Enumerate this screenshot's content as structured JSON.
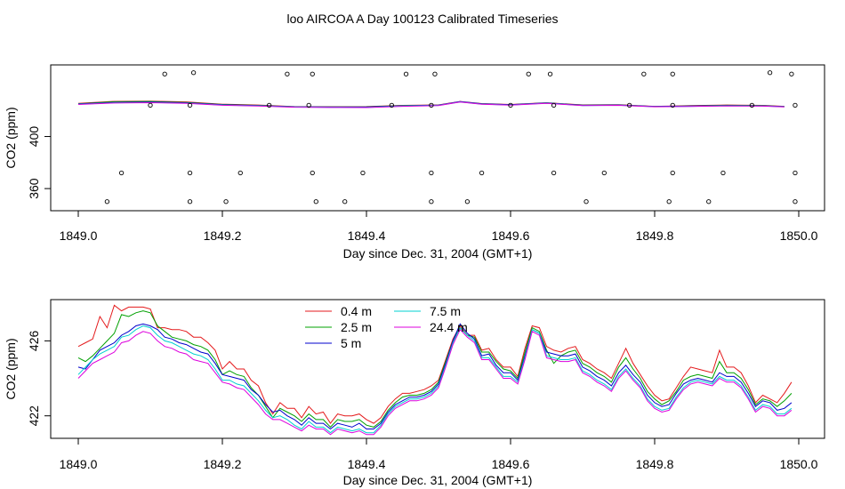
{
  "title": "loo AIRCOA A  Day 100123  Calibrated Timeseries",
  "colors": {
    "s04": "#e41a1c",
    "s25": "#00a000",
    "s5": "#0000cc",
    "s75": "#00d0d0",
    "s244": "#dd00dd"
  },
  "chart_data": [
    {
      "type": "line",
      "xlabel": "Day since Dec. 31, 2004 (GMT+1)",
      "ylabel": "CO2 (ppm)",
      "xlim": [
        1849.0,
        1850.0
      ],
      "ylim": [
        343,
        455
      ],
      "xticks": [
        "1849.0",
        "1849.2",
        "1849.4",
        "1849.6",
        "1849.8",
        "1850.0"
      ],
      "yticks": [
        "360",
        "400"
      ],
      "grid": false,
      "x": [
        1849.0,
        1849.05,
        1849.1,
        1849.15,
        1849.2,
        1849.25,
        1849.3,
        1849.35,
        1849.4,
        1849.45,
        1849.5,
        1849.53,
        1849.56,
        1849.6,
        1849.65,
        1849.7,
        1849.75,
        1849.8,
        1849.85,
        1849.9,
        1849.95,
        1849.98
      ],
      "series": [
        {
          "name": "0.4 m",
          "values": [
            425.4,
            427,
            427.2,
            426.6,
            424.8,
            424.2,
            423,
            422.9,
            423,
            423.9,
            424.3,
            426.9,
            425.3,
            424.6,
            426,
            424.3,
            424.5,
            423.2,
            423.7,
            424.2,
            423.9,
            423.2
          ]
        },
        {
          "name": "2.5 m",
          "values": [
            425.1,
            426.7,
            426.9,
            426.2,
            424.6,
            423.9,
            422.8,
            422.7,
            422.8,
            423.7,
            424.1,
            426.7,
            425.1,
            424.4,
            425.8,
            424.1,
            424.3,
            423,
            423.5,
            424,
            423.7,
            423
          ]
        },
        {
          "name": "5 m",
          "values": [
            425,
            426.2,
            426.5,
            425.9,
            424.4,
            423.8,
            422.8,
            422.6,
            422.6,
            423.6,
            424.1,
            426.8,
            425.1,
            424.4,
            425.8,
            424,
            424.2,
            423.1,
            423.4,
            423.8,
            423.6,
            423
          ]
        },
        {
          "name": "7.5 m",
          "values": [
            424.8,
            425.9,
            426.2,
            425.6,
            424.2,
            423.6,
            422.6,
            422.4,
            422.3,
            423.4,
            423.9,
            426.6,
            424.9,
            424.2,
            425.6,
            423.8,
            424,
            422.9,
            423.2,
            423.6,
            423.4,
            422.8
          ]
        },
        {
          "name": "24.4 m",
          "values": [
            424.6,
            425.7,
            426,
            425.4,
            424,
            423.4,
            422.5,
            422.3,
            422.2,
            423.2,
            423.8,
            426.5,
            424.8,
            424.1,
            425.5,
            423.7,
            423.9,
            422.8,
            423.1,
            423.5,
            423.3,
            422.7
          ]
        }
      ],
      "points": {
        "x": [
          1849.04,
          1849.06,
          1849.1,
          1849.12,
          1849.155,
          1849.155,
          1849.155,
          1849.16,
          1849.205,
          1849.225,
          1849.265,
          1849.29,
          1849.32,
          1849.325,
          1849.325,
          1849.33,
          1849.37,
          1849.395,
          1849.435,
          1849.455,
          1849.49,
          1849.49,
          1849.49,
          1849.495,
          1849.54,
          1849.56,
          1849.6,
          1849.625,
          1849.655,
          1849.66,
          1849.66,
          1849.705,
          1849.73,
          1849.765,
          1849.785,
          1849.82,
          1849.825,
          1849.825,
          1849.825,
          1849.875,
          1849.895,
          1849.935,
          1849.96,
          1849.99,
          1849.995,
          1849.995,
          1849.995
        ],
        "y": [
          350,
          372,
          424,
          448,
          350,
          372,
          424,
          449,
          350,
          372,
          424,
          448,
          424,
          448,
          372,
          350,
          350,
          372,
          424,
          448,
          350,
          372,
          424,
          448,
          350,
          372,
          424,
          448,
          448,
          424,
          372,
          350,
          372,
          424,
          448,
          350,
          372,
          424,
          448,
          350,
          372,
          424,
          449,
          448,
          424,
          372,
          350
        ]
      }
    },
    {
      "type": "line",
      "xlabel": "Day since Dec. 31, 2004 (GMT+1)",
      "ylabel": "CO2 (ppm)",
      "xlim": [
        1849.0,
        1850.0
      ],
      "ylim": [
        420.8,
        428.2
      ],
      "xticks": [
        "1849.0",
        "1849.2",
        "1849.4",
        "1849.6",
        "1849.8",
        "1850.0"
      ],
      "yticks": [
        "422",
        "426"
      ],
      "grid": false,
      "legend": "top-center",
      "x": [
        1849.0,
        1849.01,
        1849.02,
        1849.03,
        1849.04,
        1849.05,
        1849.06,
        1849.07,
        1849.08,
        1849.09,
        1849.1,
        1849.11,
        1849.12,
        1849.13,
        1849.14,
        1849.15,
        1849.16,
        1849.17,
        1849.18,
        1849.19,
        1849.2,
        1849.21,
        1849.22,
        1849.23,
        1849.24,
        1849.25,
        1849.26,
        1849.27,
        1849.28,
        1849.29,
        1849.3,
        1849.31,
        1849.32,
        1849.33,
        1849.34,
        1849.35,
        1849.36,
        1849.37,
        1849.38,
        1849.39,
        1849.4,
        1849.41,
        1849.42,
        1849.43,
        1849.44,
        1849.45,
        1849.46,
        1849.47,
        1849.48,
        1849.49,
        1849.5,
        1849.51,
        1849.52,
        1849.53,
        1849.54,
        1849.55,
        1849.56,
        1849.57,
        1849.58,
        1849.59,
        1849.6,
        1849.61,
        1849.62,
        1849.63,
        1849.64,
        1849.65,
        1849.66,
        1849.67,
        1849.68,
        1849.69,
        1849.7,
        1849.71,
        1849.72,
        1849.73,
        1849.74,
        1849.75,
        1849.76,
        1849.77,
        1849.78,
        1849.79,
        1849.8,
        1849.81,
        1849.82,
        1849.83,
        1849.84,
        1849.85,
        1849.86,
        1849.87,
        1849.88,
        1849.89,
        1849.9,
        1849.91,
        1849.92,
        1849.93,
        1849.94,
        1849.95,
        1849.96,
        1849.97,
        1849.98,
        1849.99
      ],
      "series": [
        {
          "name": "0.4 m",
          "values": [
            425.7,
            425.9,
            426.1,
            427.3,
            426.7,
            427.9,
            427.6,
            427.8,
            427.8,
            427.8,
            427.7,
            426.7,
            426.7,
            426.6,
            426.6,
            426.5,
            426.2,
            426.2,
            425.9,
            425.5,
            424.5,
            424.9,
            424.5,
            424.5,
            423.9,
            423.6,
            422.7,
            422.1,
            422.7,
            422.4,
            422.4,
            421.9,
            422.5,
            422.1,
            422.2,
            421.6,
            422.1,
            422.0,
            422.0,
            422.1,
            421.8,
            421.6,
            421.9,
            422.5,
            422.9,
            423.2,
            423.2,
            423.3,
            423.4,
            423.6,
            423.9,
            425.0,
            426.1,
            426.8,
            426.3,
            426.3,
            425.5,
            425.6,
            425.0,
            424.6,
            424.6,
            424.1,
            425.6,
            426.8,
            426.7,
            425.7,
            425.5,
            425.4,
            425.6,
            425.7,
            425.0,
            424.8,
            424.5,
            424.3,
            424.0,
            424.8,
            425.6,
            424.8,
            424.2,
            423.6,
            423.1,
            422.8,
            422.9,
            423.5,
            424.1,
            424.6,
            424.5,
            424.4,
            424.3,
            425.5,
            424.6,
            424.6,
            424.3,
            423.6,
            422.7,
            423.1,
            422.9,
            422.7,
            423.2,
            423.8
          ]
        },
        {
          "name": "2.5 m",
          "values": [
            425.1,
            424.9,
            425.2,
            425.6,
            426.0,
            426.4,
            427.4,
            427.3,
            427.5,
            427.6,
            427.5,
            426.8,
            426.5,
            426.2,
            426.1,
            426.0,
            425.8,
            425.7,
            425.5,
            425.0,
            424.2,
            424.4,
            424.2,
            424.1,
            423.5,
            423.1,
            422.5,
            421.9,
            422.4,
            422.2,
            422.0,
            421.7,
            422.1,
            421.8,
            421.8,
            421.4,
            421.8,
            421.7,
            421.7,
            421.8,
            421.5,
            421.4,
            421.7,
            422.3,
            422.7,
            423.0,
            423.1,
            423.1,
            423.2,
            423.4,
            423.8,
            424.9,
            426.0,
            426.7,
            426.3,
            426.2,
            425.4,
            425.4,
            424.9,
            424.5,
            424.4,
            424.0,
            425.4,
            426.7,
            426.5,
            425.5,
            424.8,
            425.2,
            425.4,
            425.5,
            424.8,
            424.6,
            424.3,
            424.1,
            423.8,
            424.6,
            425.1,
            424.5,
            424.0,
            423.3,
            422.9,
            422.6,
            422.8,
            423.3,
            423.9,
            424.1,
            424.2,
            424.1,
            424.0,
            424.9,
            424.3,
            424.3,
            424.0,
            423.4,
            422.6,
            422.9,
            422.8,
            422.5,
            422.8,
            423.2
          ]
        },
        {
          "name": "5 m",
          "values": [
            424.6,
            424.5,
            425.0,
            425.5,
            425.7,
            425.9,
            426.3,
            426.5,
            426.8,
            426.9,
            426.8,
            426.6,
            426.2,
            426.1,
            425.9,
            425.8,
            425.6,
            425.4,
            425.3,
            424.8,
            424.2,
            424.1,
            424.0,
            423.9,
            423.4,
            423.1,
            422.6,
            422.2,
            422.3,
            422.0,
            421.8,
            421.5,
            421.9,
            421.6,
            421.6,
            421.3,
            421.6,
            421.5,
            421.4,
            421.6,
            421.3,
            421.3,
            421.6,
            422.2,
            422.6,
            422.8,
            423.0,
            423.0,
            423.1,
            423.3,
            423.7,
            424.8,
            426.0,
            426.9,
            426.4,
            426.1,
            425.2,
            425.3,
            424.7,
            424.3,
            424.3,
            423.9,
            425.2,
            426.6,
            426.4,
            425.4,
            425.3,
            425.2,
            425.2,
            425.3,
            424.6,
            424.4,
            424.1,
            423.9,
            423.6,
            424.3,
            424.7,
            424.2,
            423.8,
            423.1,
            422.7,
            422.5,
            422.6,
            423.2,
            423.7,
            423.9,
            424.0,
            423.9,
            423.8,
            424.3,
            424.1,
            424.1,
            423.8,
            423.2,
            422.5,
            422.8,
            422.7,
            422.3,
            422.4,
            422.7
          ]
        },
        {
          "name": "7.5 m",
          "values": [
            424.2,
            424.6,
            425.0,
            425.3,
            425.5,
            425.7,
            426.2,
            426.3,
            426.6,
            426.8,
            426.7,
            426.3,
            426.0,
            425.9,
            425.7,
            425.5,
            425.3,
            425.2,
            425.0,
            424.5,
            423.9,
            423.9,
            423.7,
            423.6,
            423.2,
            422.8,
            422.3,
            421.9,
            422.0,
            421.8,
            421.5,
            421.3,
            421.7,
            421.4,
            421.4,
            421.1,
            421.4,
            421.3,
            421.2,
            421.3,
            421.1,
            421.1,
            421.5,
            422.1,
            422.5,
            422.7,
            422.9,
            422.9,
            423.0,
            423.2,
            423.6,
            424.7,
            425.9,
            426.7,
            426.3,
            426.0,
            425.1,
            425.1,
            424.6,
            424.1,
            424.1,
            423.8,
            425.1,
            426.6,
            426.4,
            425.2,
            425.1,
            425.0,
            425.0,
            425.1,
            424.4,
            424.2,
            423.9,
            423.7,
            423.4,
            424.1,
            424.5,
            424.0,
            423.6,
            422.9,
            422.5,
            422.3,
            422.4,
            423.0,
            423.5,
            423.8,
            423.9,
            423.8,
            423.7,
            424.1,
            423.9,
            423.9,
            423.6,
            423.0,
            422.3,
            422.6,
            422.5,
            422.1,
            422.1,
            422.4
          ]
        },
        {
          "name": "24.4 m",
          "values": [
            424.0,
            424.4,
            424.8,
            425.0,
            425.2,
            425.4,
            425.9,
            426.0,
            426.3,
            426.5,
            426.4,
            426.0,
            425.7,
            425.6,
            425.4,
            425.3,
            425.0,
            424.9,
            424.8,
            424.3,
            423.8,
            423.7,
            423.5,
            423.4,
            423.0,
            422.6,
            422.1,
            421.8,
            421.8,
            421.6,
            421.4,
            421.2,
            421.5,
            421.3,
            421.3,
            421.0,
            421.3,
            421.2,
            421.1,
            421.2,
            421.0,
            421.0,
            421.4,
            422.0,
            422.4,
            422.6,
            422.8,
            422.8,
            422.9,
            423.1,
            423.5,
            424.6,
            425.8,
            426.6,
            426.2,
            425.9,
            425.0,
            425.0,
            424.5,
            424.0,
            424.0,
            423.7,
            425.0,
            426.5,
            426.3,
            425.1,
            425.0,
            424.9,
            424.9,
            425.0,
            424.3,
            424.1,
            423.8,
            423.6,
            423.3,
            424.0,
            424.4,
            423.9,
            423.5,
            422.8,
            422.4,
            422.2,
            422.3,
            422.9,
            423.4,
            423.7,
            423.8,
            423.7,
            423.6,
            424.0,
            423.8,
            423.8,
            423.5,
            422.9,
            422.2,
            422.5,
            422.4,
            422.0,
            422.0,
            422.3
          ]
        }
      ]
    }
  ]
}
